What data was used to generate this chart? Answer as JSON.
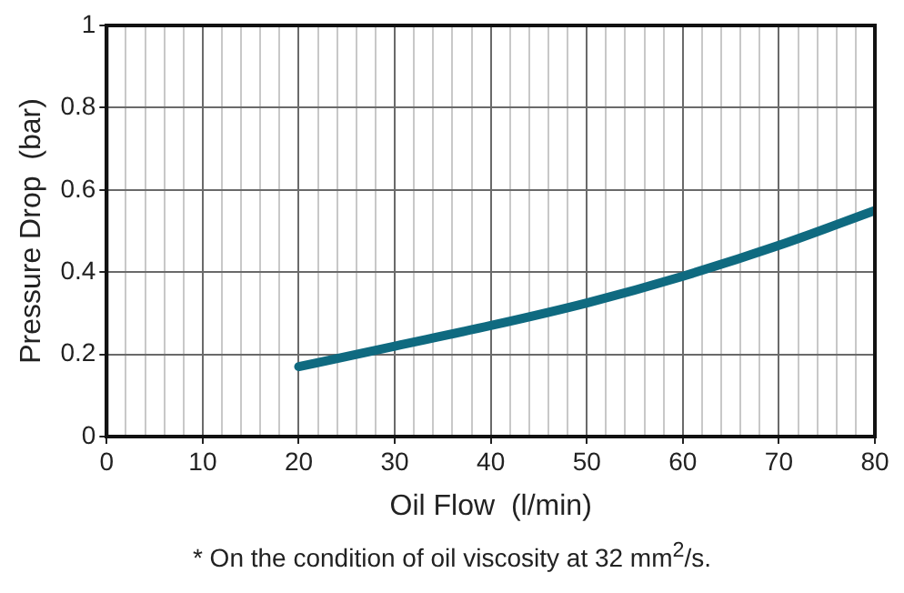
{
  "chart_data": {
    "type": "line",
    "xlabel": "Oil Flow  (l/min)",
    "ylabel": "Pressure Drop  (bar)",
    "annotations": [
      "* On the condition of oil viscosity at 32 mm$^{2}$/s."
    ],
    "series": [
      {
        "color": "#0f6a80",
        "x": [
          20,
          30,
          40,
          50,
          60,
          70,
          80
        ],
        "values": [
          0.17,
          0.22,
          0.27,
          0.325,
          0.39,
          0.465,
          0.55
        ]
      }
    ],
    "xlim": [
      0,
      80
    ],
    "ylim": [
      0,
      1
    ],
    "xticks": [
      0,
      {
        "value": 2,
        "label": null
      },
      {
        "value": 4,
        "label": null
      },
      {
        "value": 6,
        "label": null
      },
      {
        "value": 8,
        "label": null
      },
      10,
      {
        "value": 12,
        "label": null
      },
      {
        "value": 14,
        "label": null
      },
      {
        "value": 16,
        "label": null
      },
      {
        "value": 18,
        "label": null
      },
      20,
      {
        "value": 22,
        "label": null
      },
      {
        "value": 24,
        "label": null
      },
      {
        "value": 26,
        "label": null
      },
      {
        "value": 28,
        "label": null
      },
      30,
      {
        "value": 32,
        "label": null
      },
      {
        "value": 34,
        "label": null
      },
      {
        "value": 36,
        "label": null
      },
      {
        "value": 38,
        "label": null
      },
      40,
      {
        "value": 42,
        "label": null
      },
      {
        "value": 44,
        "label": null
      },
      {
        "value": 46,
        "label": null
      },
      {
        "value": 48,
        "label": null
      },
      50,
      {
        "value": 52,
        "label": null
      },
      {
        "value": 54,
        "label": null
      },
      {
        "value": 56,
        "label": null
      },
      {
        "value": 58,
        "label": null
      },
      60,
      {
        "value": 62,
        "label": null
      },
      {
        "value": 64,
        "label": null
      },
      {
        "value": 66,
        "label": null
      },
      {
        "value": 68,
        "label": null
      },
      70,
      {
        "value": 72,
        "label": null
      },
      {
        "value": 74,
        "label": null
      },
      {
        "value": 76,
        "label": null
      },
      {
        "value": 78,
        "label": null
      },
      80
    ],
    "yticks": [
      0,
      0.2,
      0.4,
      0.6,
      0.8,
      1
    ],
    "grid": true,
    "marker": "none",
    "line_style": "solid"
  }
}
